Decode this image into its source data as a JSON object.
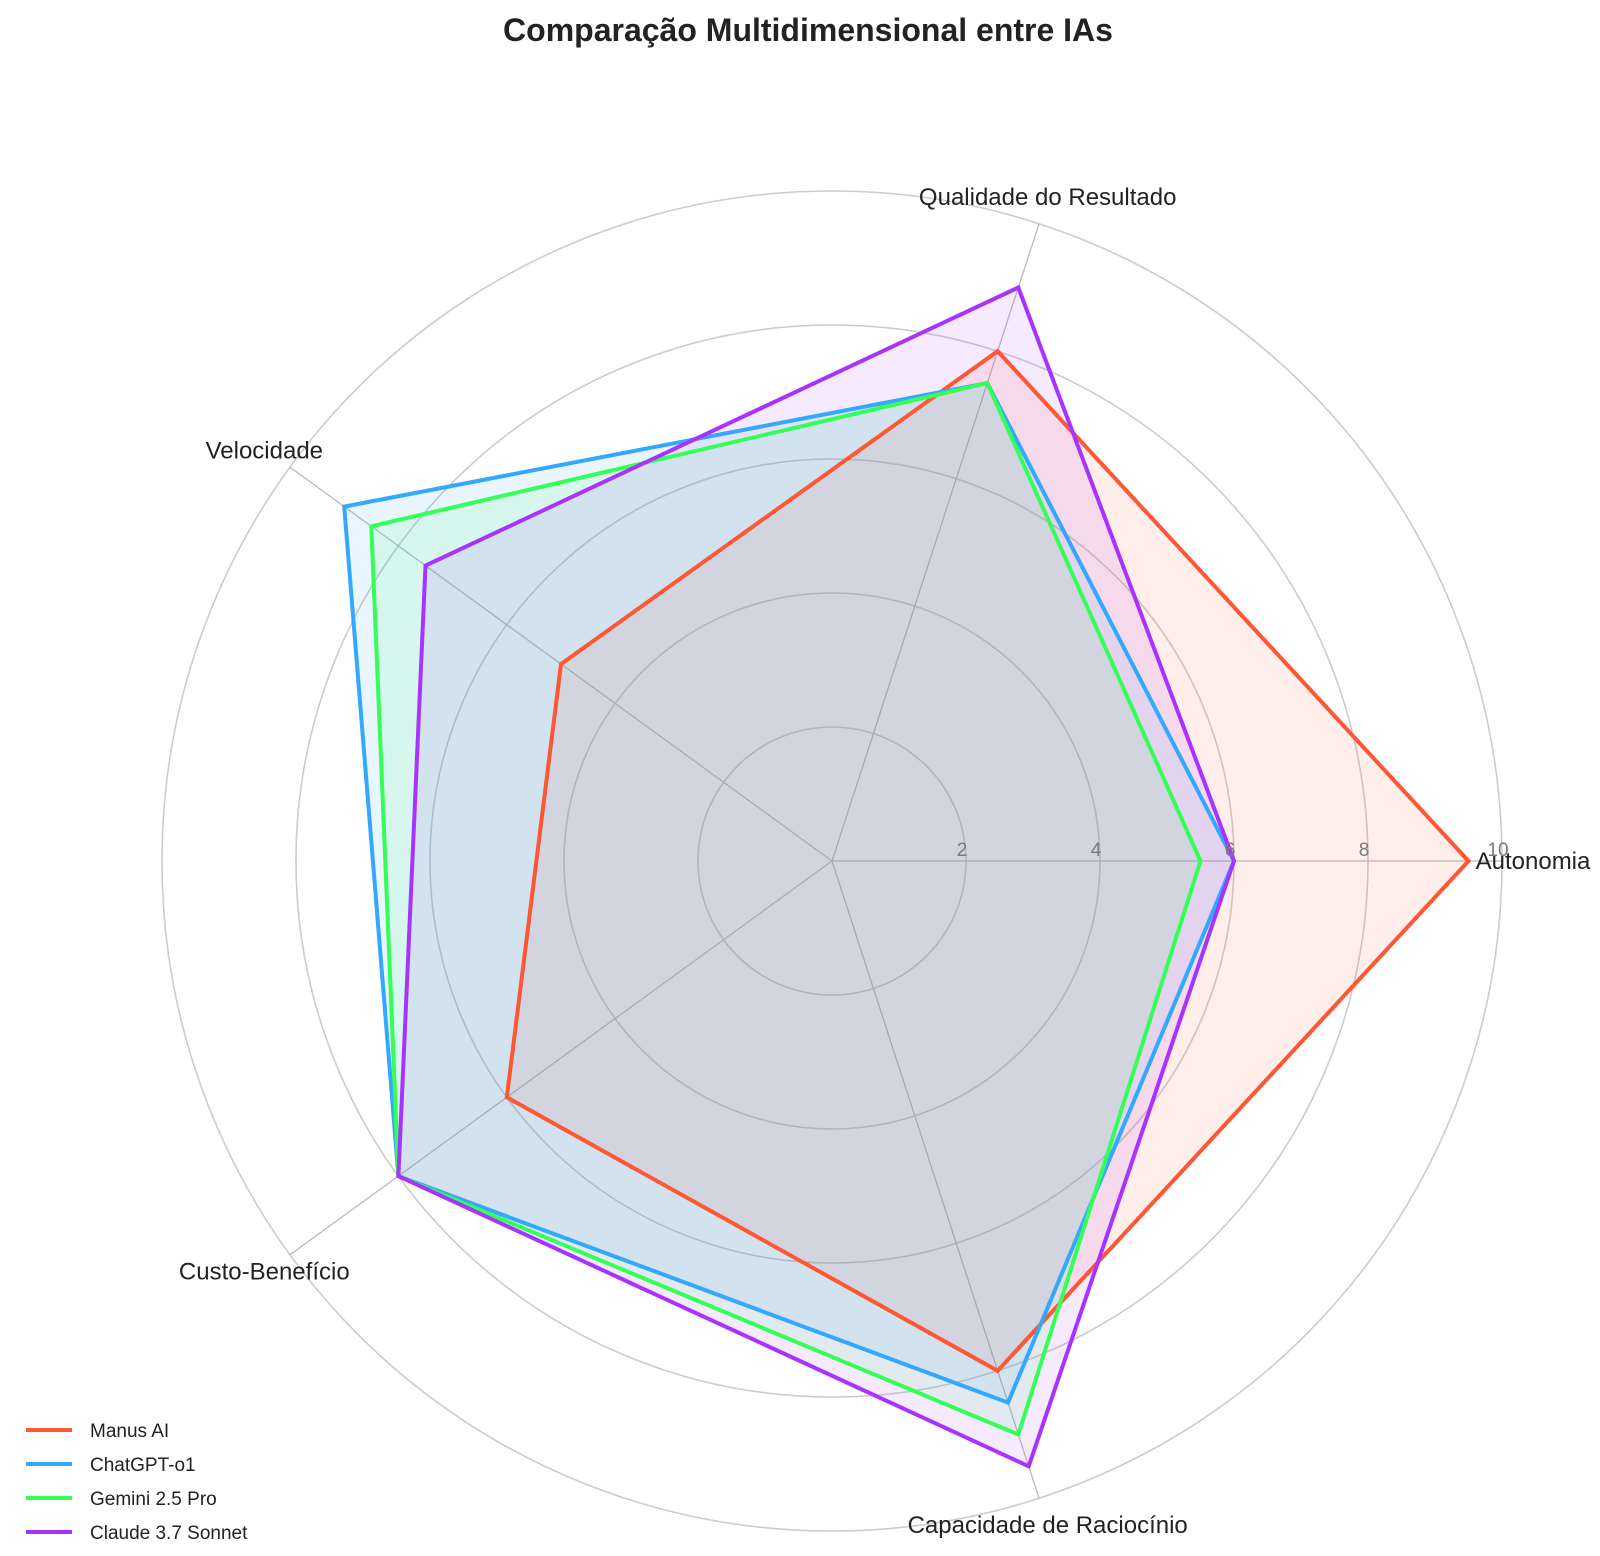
{
  "chart_data": {
    "type": "radar",
    "title": "Comparação Multidimensional entre IAs",
    "axes": [
      "Autonomia",
      "Qualidade do Resultado",
      "Velocidade",
      "Custo-Benefício",
      "Capacidade de Raciocínio"
    ],
    "rlim": [
      0,
      10
    ],
    "r_ticks": [
      2,
      4,
      6,
      8,
      10
    ],
    "r_tick_labels": [
      "2",
      "4",
      "6",
      "8",
      "10"
    ],
    "grid": true,
    "legend_position": "lower-left",
    "series": [
      {
        "name": "Manus AI",
        "color": "#FF5733",
        "values": [
          9.5,
          8.0,
          5.0,
          6.0,
          8.0
        ]
      },
      {
        "name": "ChatGPT-o1",
        "color": "#33A8FF",
        "values": [
          6.0,
          7.5,
          9.0,
          8.0,
          8.5
        ]
      },
      {
        "name": "Gemini 2.5 Pro",
        "color": "#33FF57",
        "values": [
          5.5,
          7.5,
          8.5,
          8.0,
          9.0
        ]
      },
      {
        "name": "Claude 3.7 Sonnet",
        "color": "#A833FF",
        "values": [
          6.0,
          9.0,
          7.5,
          8.0,
          9.5
        ]
      }
    ]
  }
}
